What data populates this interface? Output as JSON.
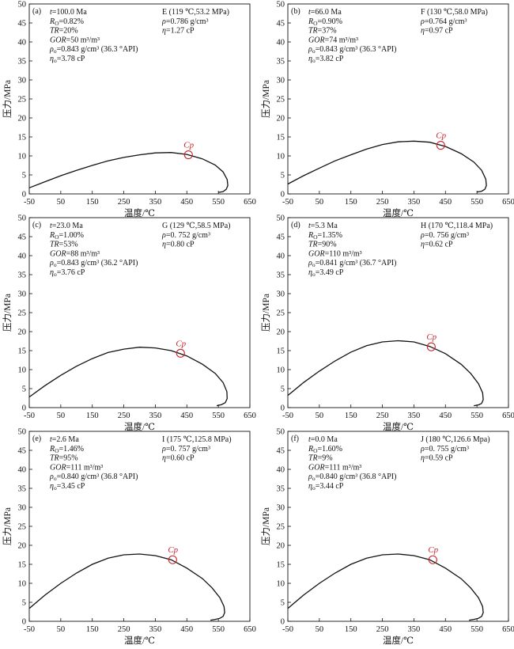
{
  "chart_data": [
    {
      "type": "line",
      "panel": "(a)",
      "xlabel": "温度/℃",
      "ylabel": "压力/MPa",
      "xlim": [
        -50,
        650
      ],
      "ylim": [
        0,
        50
      ],
      "xticks": [
        -50,
        50,
        150,
        250,
        350,
        450,
        550,
        650
      ],
      "yticks": [
        0,
        5,
        10,
        15,
        20,
        25,
        30,
        35,
        40,
        45,
        50
      ],
      "series": [
        {
          "x": [
            -50,
            0,
            50,
            100,
            150,
            200,
            250,
            300,
            350,
            400,
            450,
            500,
            540,
            565,
            578,
            580,
            575,
            565,
            550
          ],
          "y": [
            1.6,
            3.2,
            4.8,
            6.2,
            7.5,
            8.7,
            9.6,
            10.3,
            10.8,
            10.9,
            10.4,
            9.2,
            7.6,
            5.8,
            3.8,
            2.2,
            1.2,
            0.6,
            0.4
          ]
        }
      ],
      "critical_point": {
        "label": "Cp",
        "x": 455,
        "y": 10.3
      },
      "annotations": {
        "left": [
          "t=100.0 Ma",
          "RO=0.82%",
          "TR=20%",
          "GOR=50 m³/m³",
          "ρo=0.843 g/cm³ (36.3 °API)",
          "ηo=3.78 cP"
        ],
        "right": [
          "E (119 ℃,53.2 MPa)",
          "ρ=0.786 g/cm³",
          "η=1.27 cP"
        ]
      }
    },
    {
      "type": "line",
      "panel": "(b)",
      "xlabel": "温度/℃",
      "ylabel": "压力/MPa",
      "xlim": [
        -50,
        650
      ],
      "ylim": [
        0,
        50
      ],
      "xticks": [
        -50,
        50,
        150,
        250,
        350,
        450,
        550,
        650
      ],
      "yticks": [
        0,
        5,
        10,
        15,
        20,
        25,
        30,
        35,
        40,
        45,
        50
      ],
      "series": [
        {
          "x": [
            -50,
            0,
            50,
            100,
            150,
            200,
            250,
            300,
            350,
            400,
            450,
            500,
            540,
            565,
            578,
            580,
            575,
            565,
            550
          ],
          "y": [
            2.6,
            4.8,
            6.8,
            8.7,
            10.3,
            11.8,
            13.0,
            13.7,
            13.9,
            13.6,
            12.5,
            10.6,
            8.4,
            6.2,
            3.9,
            2.2,
            1.2,
            0.7,
            0.5
          ]
        }
      ],
      "critical_point": {
        "label": "Cp",
        "x": 435,
        "y": 12.8
      },
      "annotations": {
        "left": [
          "t=66.0 Ma",
          "RO=0.90%",
          "TR=37%",
          "GOR=74 m³/m³",
          "ρo=0.843 g/cm³ (36.3 °API)",
          "ηo=3.82 cP"
        ],
        "right": [
          "F (130 ℃,58.0 MPa)",
          "ρ=0.764  g/cm³",
          "η=0.97 cP"
        ]
      }
    },
    {
      "type": "line",
      "panel": "(c)",
      "xlabel": "温度/℃",
      "ylabel": "压力/MPa",
      "xlim": [
        -50,
        650
      ],
      "ylim": [
        0,
        50
      ],
      "xticks": [
        -50,
        50,
        150,
        250,
        350,
        450,
        550,
        650
      ],
      "yticks": [
        0,
        5,
        10,
        15,
        20,
        25,
        30,
        35,
        40,
        45,
        50
      ],
      "series": [
        {
          "x": [
            -50,
            0,
            50,
            100,
            150,
            200,
            250,
            300,
            350,
            400,
            450,
            500,
            540,
            565,
            577,
            578,
            572,
            560,
            545
          ],
          "y": [
            2.8,
            5.8,
            8.5,
            10.9,
            12.9,
            14.5,
            15.4,
            15.9,
            15.7,
            15.0,
            13.6,
            11.4,
            9.0,
            6.6,
            4.2,
            2.4,
            1.3,
            0.8,
            0.5
          ]
        }
      ],
      "critical_point": {
        "label": "Cp",
        "x": 430,
        "y": 14.3
      },
      "annotations": {
        "left": [
          "t=23.0 Ma",
          "RO=1.00%",
          "TR=53%",
          "GOR=88 m³/m³",
          "ρo=0.843 g/cm³ (36.2 °API)",
          "ηo=3.76 cP"
        ],
        "right": [
          "G (129 ℃,58.5 MPa)",
          "ρ=0. 752  g/cm³",
          "η=0.80 cP"
        ]
      }
    },
    {
      "type": "line",
      "panel": "(d)",
      "xlabel": "温度/℃",
      "ylabel": "压力/MPa",
      "xlim": [
        -50,
        650
      ],
      "ylim": [
        0,
        50
      ],
      "xticks": [
        -50,
        50,
        150,
        250,
        350,
        450,
        550,
        650
      ],
      "yticks": [
        0,
        5,
        10,
        15,
        20,
        25,
        30,
        35,
        40,
        45,
        50
      ],
      "series": [
        {
          "x": [
            -50,
            0,
            50,
            100,
            150,
            200,
            250,
            300,
            350,
            400,
            450,
            500,
            530,
            555,
            568,
            570,
            565,
            555,
            540
          ],
          "y": [
            3.2,
            6.6,
            9.6,
            12.3,
            14.6,
            16.3,
            17.3,
            17.6,
            17.3,
            16.1,
            14.2,
            11.4,
            9.0,
            6.3,
            3.9,
            2.1,
            1.1,
            0.7,
            0.5
          ]
        }
      ],
      "critical_point": {
        "label": "Cp",
        "x": 405,
        "y": 16.0
      },
      "annotations": {
        "left": [
          "t=5.3 Ma",
          "RO=1.35%",
          "TR=90%",
          "GOR=110 m³/m³",
          "ρo=0.841 g/cm³ (36.7 °API)",
          "ηo=3.49 cP"
        ],
        "right": [
          "H (170 ℃,118.4 MPa)",
          "ρ=0. 756  g/cm³",
          "η=0.62 cP"
        ]
      }
    },
    {
      "type": "line",
      "panel": "(e)",
      "xlabel": "温度/℃",
      "ylabel": "压力/MPa",
      "xlim": [
        -50,
        650
      ],
      "ylim": [
        0,
        50
      ],
      "xticks": [
        -50,
        50,
        150,
        250,
        350,
        450,
        550,
        650
      ],
      "yticks": [
        0,
        5,
        10,
        15,
        20,
        25,
        30,
        35,
        40,
        45,
        50
      ],
      "series": [
        {
          "x": [
            -50,
            0,
            50,
            100,
            150,
            200,
            250,
            300,
            350,
            400,
            450,
            500,
            530,
            555,
            568,
            570,
            565,
            555,
            540,
            525
          ],
          "y": [
            3.4,
            6.9,
            10.0,
            12.7,
            15.0,
            16.6,
            17.5,
            17.7,
            17.3,
            16.2,
            14.0,
            11.2,
            8.8,
            6.2,
            3.9,
            2.3,
            1.3,
            0.8,
            0.5,
            0.3
          ]
        }
      ],
      "critical_point": {
        "label": "Cp",
        "x": 405,
        "y": 16.2
      },
      "annotations": {
        "left": [
          "t=2.6 Ma",
          "RO=1.46%",
          "TR=95%",
          "GOR=111 m³/m³",
          "ρo=0.840 g/cm³ (36.8 °API)",
          "ηo=3.45 cP"
        ],
        "right": [
          "I (175 ℃,125.8 MPa)",
          "ρ=0. 757  g/cm³",
          "η=0.60 cP"
        ]
      }
    },
    {
      "type": "line",
      "panel": "(f)",
      "xlabel": "温度/℃",
      "ylabel": "压力/MPa",
      "xlim": [
        -50,
        650
      ],
      "ylim": [
        0,
        50
      ],
      "xticks": [
        -50,
        50,
        150,
        250,
        350,
        450,
        550,
        650
      ],
      "yticks": [
        0,
        5,
        10,
        15,
        20,
        25,
        30,
        35,
        40,
        45,
        50
      ],
      "series": [
        {
          "x": [
            -50,
            0,
            50,
            100,
            150,
            200,
            250,
            300,
            350,
            400,
            450,
            500,
            530,
            555,
            568,
            570,
            565,
            555,
            540,
            525
          ],
          "y": [
            3.4,
            6.9,
            10.0,
            12.7,
            15.0,
            16.6,
            17.5,
            17.7,
            17.3,
            16.2,
            14.0,
            11.2,
            8.8,
            6.2,
            3.9,
            2.3,
            1.3,
            0.8,
            0.5,
            0.3
          ]
        }
      ],
      "critical_point": {
        "label": "Cp",
        "x": 410,
        "y": 16.2
      },
      "annotations": {
        "left": [
          "t=0.0 Ma",
          "RO=1.60%",
          "TR=9%",
          "GOR=111 m³/m³",
          "ρo=0.840 g/cm³ (36.8 °API)",
          "ηo=3.44 cP"
        ],
        "right": [
          "J (180 ℃,126.6 Mpa)",
          "ρ=0. 755  g/cm³",
          "η=0.59 cP"
        ]
      }
    }
  ]
}
